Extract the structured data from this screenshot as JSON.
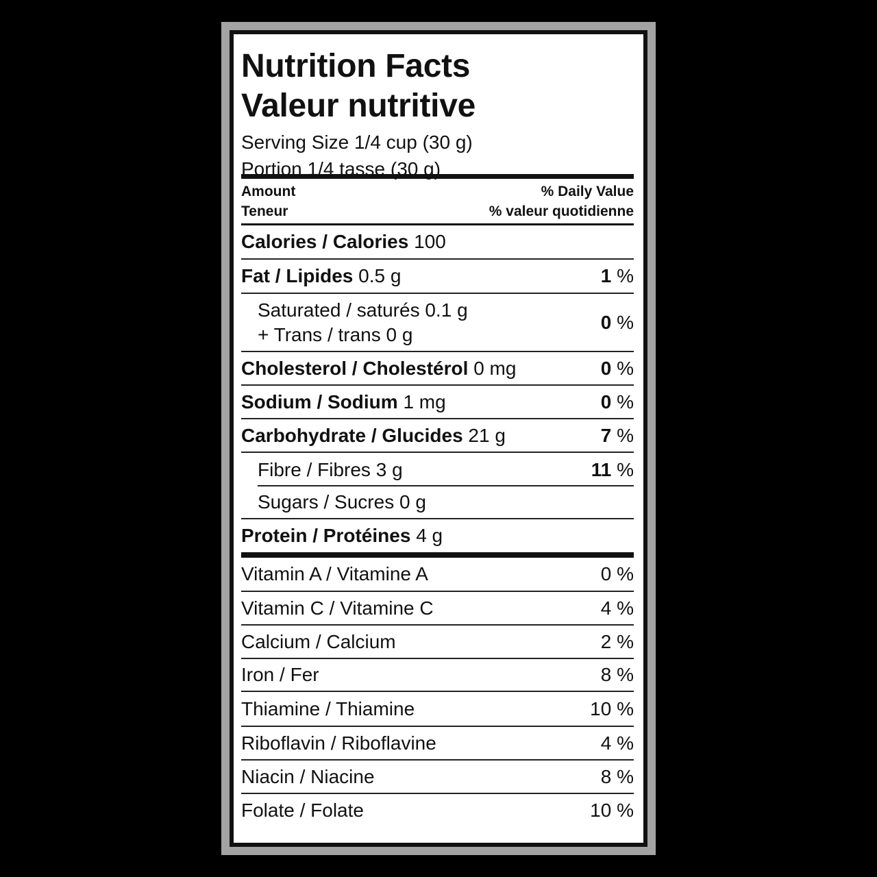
{
  "title_en": "Nutrition Facts",
  "title_fr": "Valeur nutritive",
  "serving_en": "Serving Size 1/4 cup (30 g)",
  "serving_fr": "Portion 1/4 tasse (30 g)",
  "header": {
    "amount_en": "Amount",
    "amount_fr": "Teneur",
    "dv_en": "% Daily Value",
    "dv_fr": "% valeur quotidienne"
  },
  "nutrients": [
    {
      "name": "Calories / Calories",
      "amount": "100",
      "dv_num": "",
      "dv_unit": ""
    },
    {
      "name": "Fat / Lipides",
      "amount": "0.5 g",
      "dv_num": "1",
      "dv_unit": "%"
    },
    {
      "name": "Saturated / saturés",
      "amount": "0.1 g",
      "name2": "+ Trans / trans",
      "amount2": "0 g",
      "dv_num": "0",
      "dv_unit": "%"
    },
    {
      "name": "Cholesterol / Cholestérol",
      "amount": "0 mg",
      "dv_num": "0",
      "dv_unit": "%"
    },
    {
      "name": "Sodium / Sodium",
      "amount": "1 mg",
      "dv_num": "0",
      "dv_unit": "%"
    },
    {
      "name": "Carbohydrate / Glucides",
      "amount": "21 g",
      "dv_num": "7",
      "dv_unit": "%"
    },
    {
      "name": "Fibre / Fibres",
      "amount": "3 g",
      "dv_num": "11",
      "dv_unit": "%"
    },
    {
      "name": "Sugars / Sucres",
      "amount": "0 g",
      "dv_num": "",
      "dv_unit": ""
    },
    {
      "name": "Protein / Protéines",
      "amount": "4 g",
      "dv_num": "",
      "dv_unit": ""
    }
  ],
  "vitamins": [
    {
      "name": "Vitamin A / Vitamine A",
      "dv": "0 %"
    },
    {
      "name": "Vitamin C / Vitamine C",
      "dv": "4 %"
    },
    {
      "name": "Calcium / Calcium",
      "dv": "2 %"
    },
    {
      "name": "Iron / Fer",
      "dv": "8 %"
    },
    {
      "name": "Thiamine / Thiamine",
      "dv": "10 %"
    },
    {
      "name": "Riboflavin / Riboflavine",
      "dv": "4 %"
    },
    {
      "name": "Niacin / Niacine",
      "dv": "8 %"
    },
    {
      "name": "Folate / Folate",
      "dv": "10 %"
    }
  ]
}
